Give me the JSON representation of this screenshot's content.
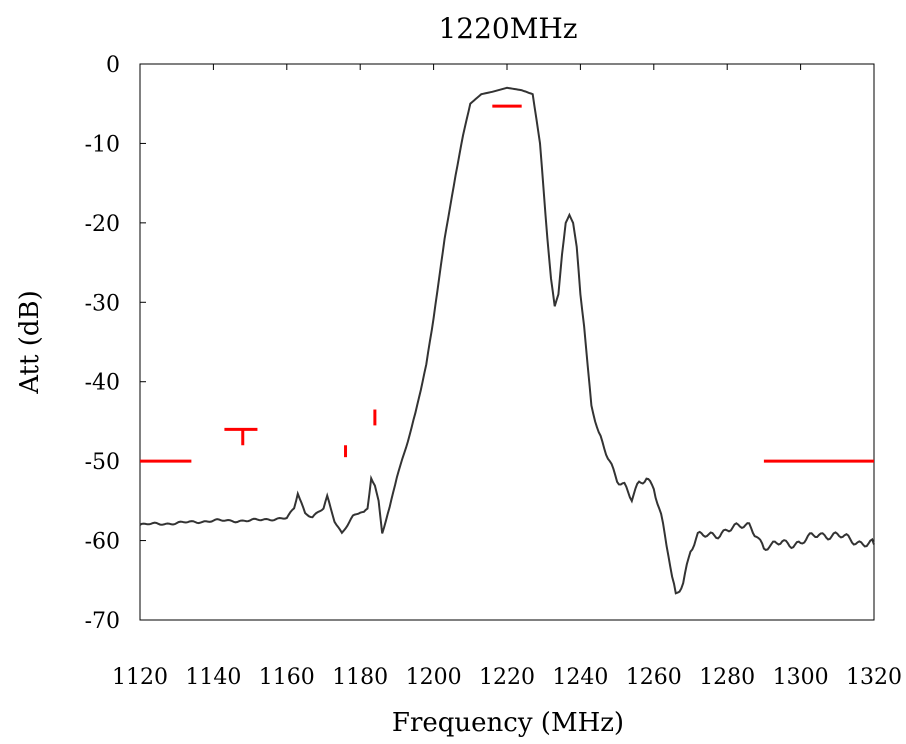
{
  "chart_data": {
    "type": "line",
    "title": "1220MHz",
    "xlabel": "Frequency (MHz)",
    "ylabel": "Att (dB)",
    "xlim": [
      1120,
      1320
    ],
    "ylim": [
      -70,
      0
    ],
    "xticks": [
      "1120",
      "1140",
      "1160",
      "1180",
      "1200",
      "1220",
      "1240",
      "1260",
      "1280",
      "1300",
      "1320"
    ],
    "yticks": [
      "0",
      "-10",
      "-20",
      "-30",
      "-40",
      "-50",
      "-60",
      "-70"
    ],
    "grid": false,
    "line_color": "#333333",
    "mask_color": "#ff0000",
    "series": [
      {
        "x": [
          1120,
          1130,
          1140,
          1150,
          1155,
          1160,
          1162,
          1163,
          1165,
          1167,
          1170,
          1171,
          1173,
          1175,
          1178,
          1180,
          1181,
          1182,
          1183,
          1184,
          1185,
          1186,
          1188,
          1190,
          1192,
          1195,
          1198,
          1200,
          1203,
          1206,
          1208,
          1210,
          1213,
          1216,
          1220,
          1224,
          1227,
          1229,
          1231,
          1232,
          1233,
          1234,
          1235,
          1236,
          1237,
          1238,
          1239,
          1240,
          1241,
          1242,
          1243,
          1245,
          1248,
          1250,
          1252,
          1254,
          1256,
          1258,
          1260,
          1262,
          1264,
          1265,
          1266,
          1267,
          1268,
          1270,
          1272,
          1275,
          1278,
          1280,
          1283,
          1286,
          1288,
          1290,
          1292,
          1295,
          1300,
          1305,
          1310,
          1315,
          1320
        ],
        "values": [
          -58,
          -57.8,
          -57.5,
          -57.5,
          -57.3,
          -57.2,
          -56,
          -54,
          -56.5,
          -57,
          -56,
          -54.5,
          -57.5,
          -59,
          -57,
          -56.5,
          -56.5,
          -56,
          -52,
          -53,
          -55,
          -59,
          -56,
          -52,
          -49,
          -44,
          -38,
          -32,
          -22,
          -14,
          -9,
          -5,
          -3.8,
          -3.5,
          -3,
          -3.3,
          -3.8,
          -10,
          -22,
          -27,
          -30.5,
          -29,
          -24,
          -20,
          -19,
          -20,
          -23,
          -29,
          -33,
          -38,
          -43,
          -47,
          -50,
          -52,
          -53,
          -55,
          -53,
          -52,
          -53,
          -57,
          -62,
          -65,
          -67,
          -66,
          -65,
          -61,
          -59.5,
          -59.5,
          -59,
          -58.5,
          -58.5,
          -58,
          -59,
          -61,
          -61,
          -60,
          -60.5,
          -59,
          -59.5,
          -60,
          -60.5
        ]
      }
    ],
    "mask": [
      {
        "x1": 1120,
        "x2": 1134,
        "y": -50
      },
      {
        "x1": 1143,
        "x2": 1152,
        "y": -46
      },
      {
        "x1": 1148,
        "x2": 1148,
        "y1": -46,
        "y2": -48
      },
      {
        "x1": 1176,
        "x2": 1176,
        "y1": -48,
        "y2": -49.5
      },
      {
        "x1": 1184,
        "x2": 1184,
        "y1": -43.5,
        "y2": -45.5
      },
      {
        "x1": 1216,
        "x2": 1224,
        "y": -5.3
      },
      {
        "x1": 1290,
        "x2": 1320,
        "y": -50
      }
    ]
  }
}
